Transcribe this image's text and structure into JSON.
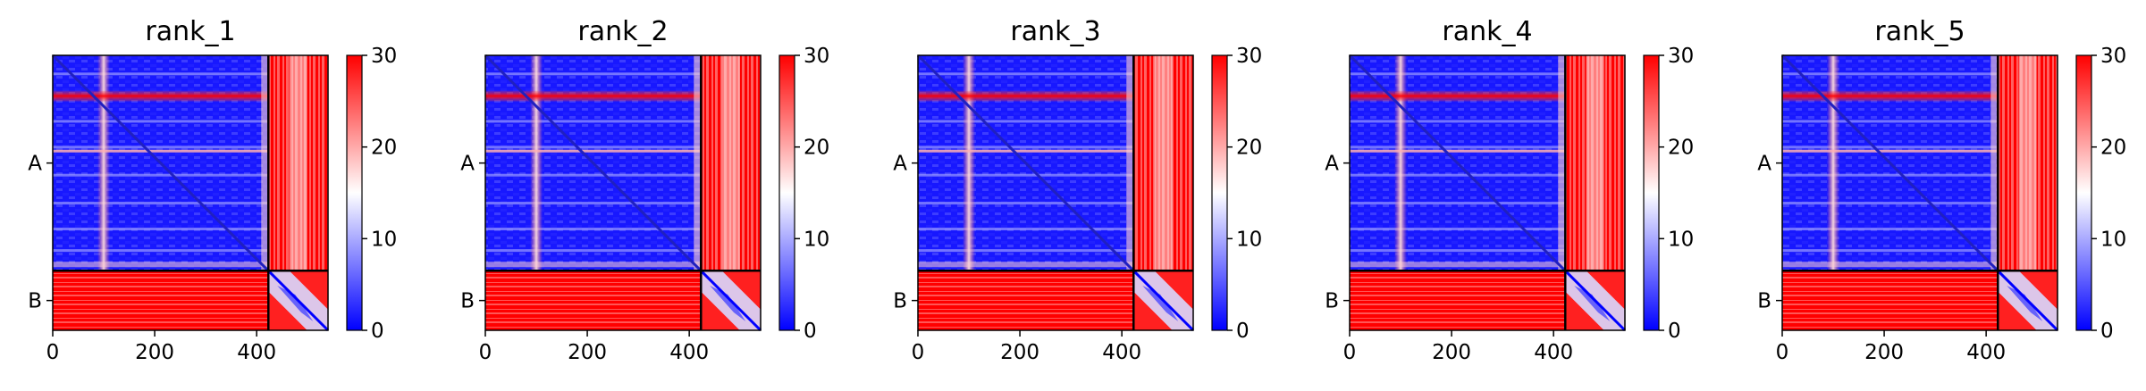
{
  "chart_data": [
    {
      "type": "heatmap",
      "title": "rank_1",
      "colormap": "bwr",
      "colorbar_range": [
        0,
        30
      ],
      "colorbar_ticks": [
        0,
        10,
        20,
        30
      ],
      "x_ticks": [
        0,
        200,
        400
      ],
      "x_range": [
        0,
        540
      ],
      "chain_labels": [
        "A",
        "B"
      ],
      "chain_lengths": [
        423,
        117
      ],
      "total_length": 540
    },
    {
      "type": "heatmap",
      "title": "rank_2",
      "colormap": "bwr",
      "colorbar_range": [
        0,
        30
      ],
      "colorbar_ticks": [
        0,
        10,
        20,
        30
      ],
      "x_ticks": [
        0,
        200,
        400
      ],
      "x_range": [
        0,
        540
      ],
      "chain_labels": [
        "A",
        "B"
      ],
      "chain_lengths": [
        423,
        117
      ],
      "total_length": 540
    },
    {
      "type": "heatmap",
      "title": "rank_3",
      "colormap": "bwr",
      "colorbar_range": [
        0,
        30
      ],
      "colorbar_ticks": [
        0,
        10,
        20,
        30
      ],
      "x_ticks": [
        0,
        200,
        400
      ],
      "x_range": [
        0,
        540
      ],
      "chain_labels": [
        "A",
        "B"
      ],
      "chain_lengths": [
        423,
        117
      ],
      "total_length": 540
    },
    {
      "type": "heatmap",
      "title": "rank_4",
      "colormap": "bwr",
      "colorbar_range": [
        0,
        30
      ],
      "colorbar_ticks": [
        0,
        10,
        20,
        30
      ],
      "x_ticks": [
        0,
        200,
        400
      ],
      "x_range": [
        0,
        540
      ],
      "chain_labels": [
        "A",
        "B"
      ],
      "chain_lengths": [
        423,
        117
      ],
      "total_length": 540
    },
    {
      "type": "heatmap",
      "title": "rank_5",
      "colormap": "bwr",
      "colorbar_range": [
        0,
        30
      ],
      "colorbar_ticks": [
        0,
        10,
        20,
        30
      ],
      "x_ticks": [
        0,
        200,
        400
      ],
      "x_range": [
        0,
        540
      ],
      "chain_labels": [
        "A",
        "B"
      ],
      "chain_lengths": [
        423,
        117
      ],
      "total_length": 540
    }
  ],
  "colors": {
    "low": "#0000ff",
    "mid": "#ffffff",
    "high": "#ff0000",
    "divider": "#000000"
  }
}
